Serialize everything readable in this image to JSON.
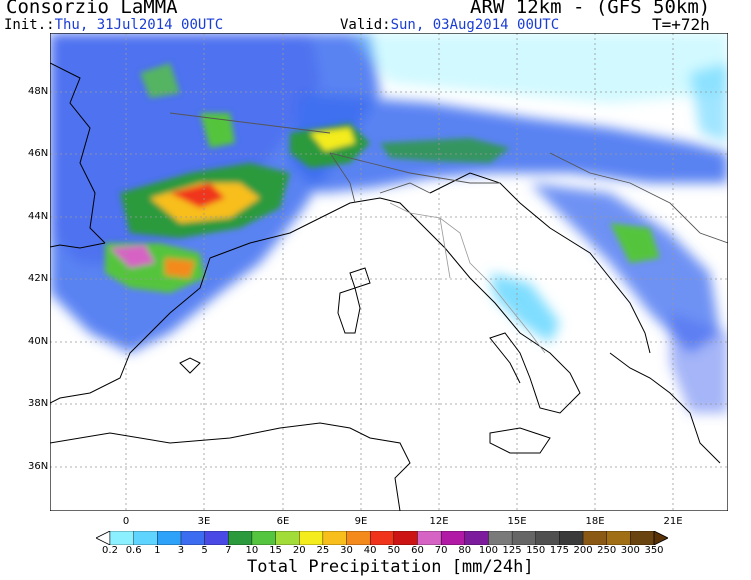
{
  "header": {
    "title": "Consorzio LaMMA",
    "model": "ARW 12km - (GFS 50km)",
    "init_label": "Init.:",
    "init_value": "Thu, 31Jul2014 00UTC",
    "valid_label": "Valid:",
    "valid_value": "Sun, 03Aug2014 00UTC",
    "step": "T=+72h"
  },
  "map": {
    "lat_labels": [
      "48N",
      "46N",
      "44N",
      "42N",
      "40N",
      "38N",
      "36N"
    ],
    "lon_labels": [
      "0",
      "3E",
      "6E",
      "9E",
      "12E",
      "15E",
      "18E",
      "21E"
    ]
  },
  "colorbar": {
    "title": "Total Precipitation [mm/24h]",
    "labels": [
      "0.2",
      "0.6",
      "1",
      "3",
      "5",
      "7",
      "10",
      "15",
      "20",
      "25",
      "30",
      "40",
      "50",
      "60",
      "70",
      "80",
      "100",
      "125",
      "150",
      "175",
      "200",
      "250",
      "300",
      "350"
    ],
    "colors": [
      "#b8fcff",
      "#8cf0ff",
      "#5fd4ff",
      "#2ea2f8",
      "#3c6cf0",
      "#4b49e6",
      "#2a9a3c",
      "#55c43e",
      "#a2dc38",
      "#f4ec1c",
      "#f8be1c",
      "#f48a1c",
      "#f0341c",
      "#cc1414",
      "#d664c4",
      "#b01aa4",
      "#7c1c9c",
      "#7a7a7a",
      "#666666",
      "#505050",
      "#3a3a3a",
      "#8a5a14",
      "#a06e14",
      "#6a4410",
      "#5a3208"
    ]
  }
}
